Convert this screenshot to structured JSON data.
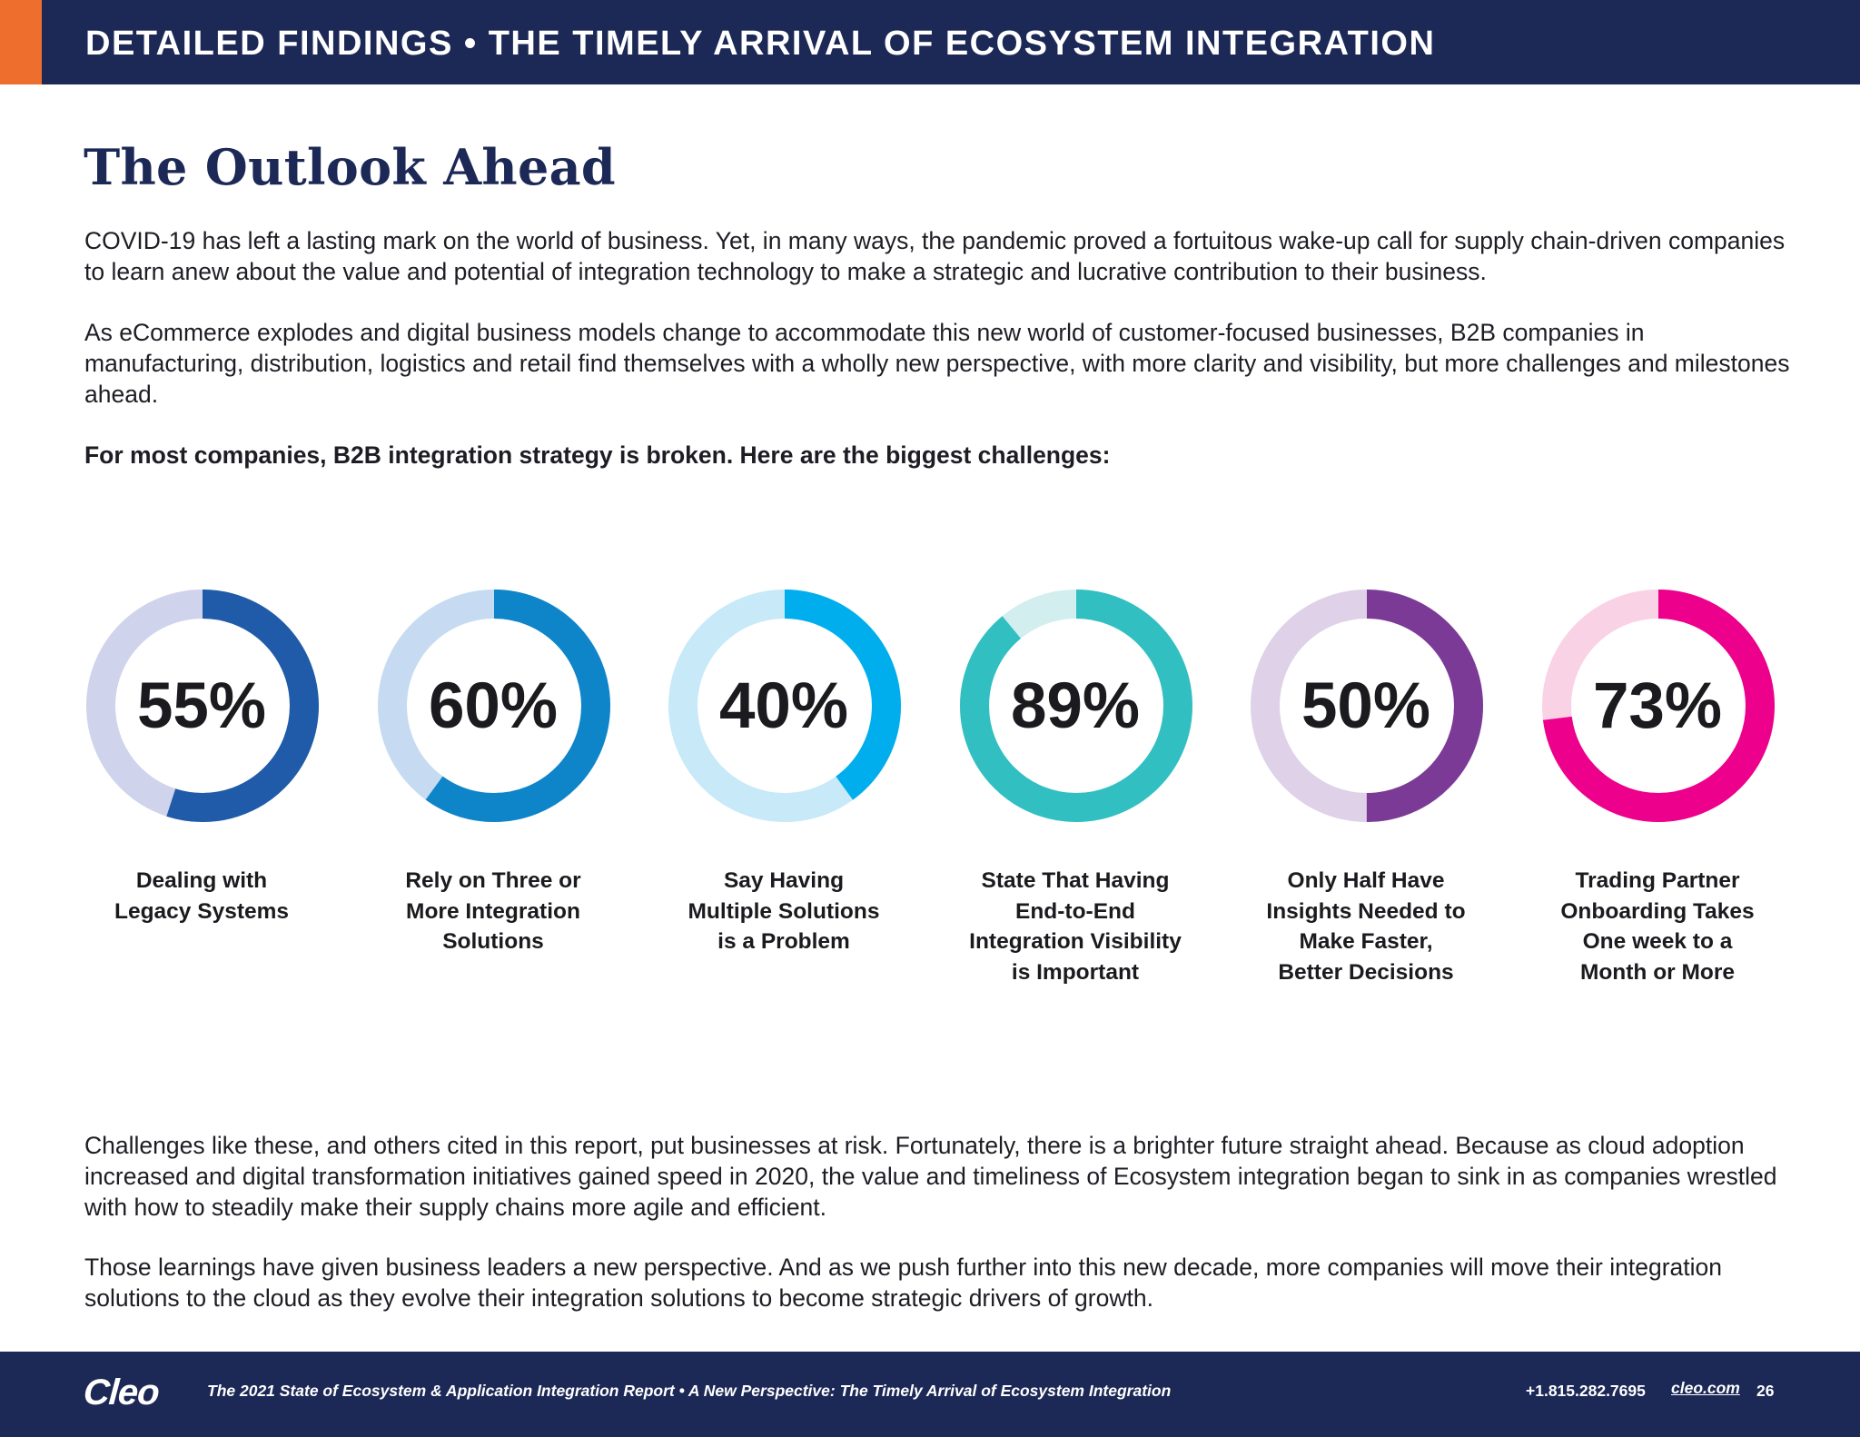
{
  "header": {
    "title": "DETAILED FINDINGS  •  THE TIMELY ARRIVAL OF ECOSYSTEM INTEGRATION",
    "accent_color": "#ee6f2d",
    "bar_color": "#1c2856"
  },
  "page_title": "The Outlook Ahead",
  "intro": [
    "COVID-19 has left a lasting mark on the world of business. Yet, in many ways, the pandemic proved a fortuitous wake-up call for supply chain-driven companies to learn anew about the value and potential of integration technology to make a strategic and lucrative contribution to their business.",
    "As eCommerce explodes and digital business models change to accommodate this new world of customer-focused businesses, B2B companies in manufacturing, distribution, logistics and retail find themselves with a wholly new perspective, with more clarity and visibility, but more challenges and milestones ahead."
  ],
  "lead": "For most companies, B2B integration strategy is broken. Here are the biggest challenges:",
  "stats": [
    {
      "value": 55,
      "display": "55%",
      "label": "Dealing with\nLegacy Systems",
      "color": "#1f5ba8",
      "track": "#cfd3ec"
    },
    {
      "value": 60,
      "display": "60%",
      "label": "Rely on Three or\nMore Integration\nSolutions",
      "color": "#0e84c9",
      "track": "#c6dbf1"
    },
    {
      "value": 40,
      "display": "40%",
      "label": "Say Having\nMultiple Solutions\nis a Problem",
      "color": "#00aeee",
      "track": "#c7e9f8"
    },
    {
      "value": 89,
      "display": "89%",
      "label": "State That Having\nEnd-to-End\nIntegration Visibility\nis Important",
      "color": "#32bfc1",
      "track": "#d2eeee"
    },
    {
      "value": 50,
      "display": "50%",
      "label": "Only Half Have\nInsights Needed to\nMake Faster,\nBetter Decisions",
      "color": "#7b3a96",
      "track": "#ded1e8"
    },
    {
      "value": 73,
      "display": "73%",
      "label": "Trading Partner\nOnboarding Takes\nOne week to a\nMonth or More",
      "color": "#ec008c",
      "track": "#f9d2e6"
    }
  ],
  "closing": [
    "Challenges like these, and others cited in this report, put businesses at risk.  Fortunately, there is a brighter future straight ahead. Because as cloud adoption increased and digital transformation initiatives gained speed in 2020, the value and timeliness of Ecosystem integration began to sink in as companies wrestled with how to steadily make their supply chains more agile and efficient.",
    "Those learnings have given business leaders a new perspective. And as we push further into this new decade, more companies will move their integration solutions to the cloud as they evolve their integration solutions to become strategic drivers of growth."
  ],
  "footer": {
    "logo": "Cleo",
    "text": "The 2021 State of Ecosystem & Application Integration Report  •  A New Perspective: The Timely Arrival of Ecosystem Integration",
    "phone": "+1.815.282.7695",
    "url": "cleo.com",
    "page": "26"
  }
}
